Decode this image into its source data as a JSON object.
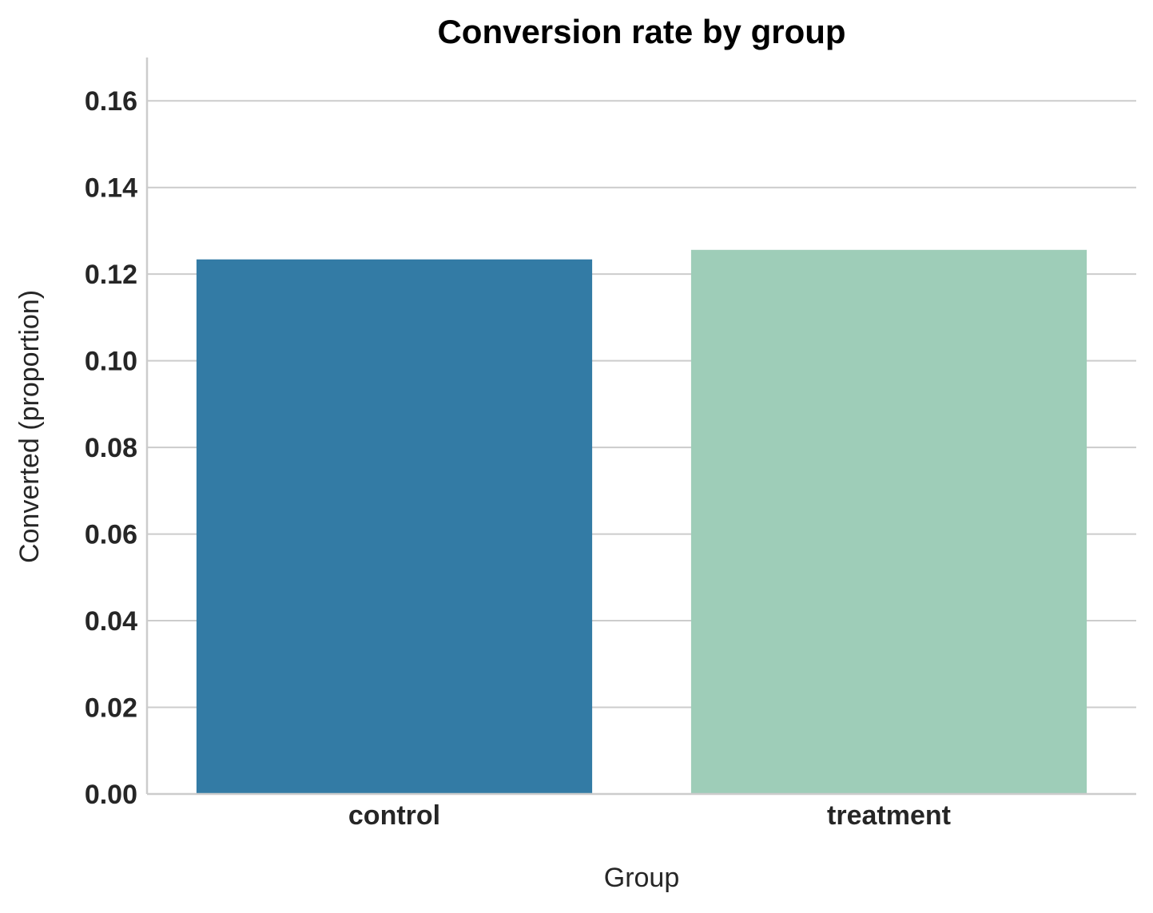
{
  "chart_data": {
    "type": "bar",
    "title": "Conversion rate by group",
    "xlabel": "Group",
    "ylabel": "Converted (proportion)",
    "categories": [
      "control",
      "treatment"
    ],
    "values": [
      0.1234,
      0.1256
    ],
    "colors": [
      "#337ba5",
      "#9ecdb8"
    ],
    "ylim": [
      0,
      0.17
    ],
    "yticks": [
      0.0,
      0.02,
      0.04,
      0.06,
      0.08,
      0.1,
      0.12,
      0.14,
      0.16
    ],
    "ytick_labels": [
      "0.00",
      "0.02",
      "0.04",
      "0.06",
      "0.08",
      "0.10",
      "0.12",
      "0.14",
      "0.16"
    ],
    "grid": "horizontal",
    "legend": "none"
  }
}
